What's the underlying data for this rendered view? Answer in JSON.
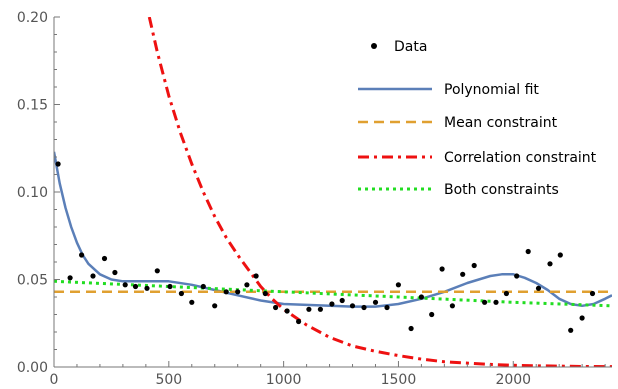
{
  "chart_data": {
    "type": "scatter",
    "title": "",
    "xlabel": "",
    "ylabel": "",
    "xlim": [
      0,
      2430
    ],
    "ylim": [
      0,
      0.2
    ],
    "x_ticks": [
      {
        "value": 0,
        "label": "0"
      },
      {
        "value": 500,
        "label": "500"
      },
      {
        "value": 1000,
        "label": "1000"
      },
      {
        "value": 1500,
        "label": "1500"
      },
      {
        "value": 2000,
        "label": "2000"
      }
    ],
    "y_ticks": [
      {
        "value": 0,
        "label": "0.00"
      },
      {
        "value": 0.05,
        "label": "0.05"
      },
      {
        "value": 0.1,
        "label": "0.10"
      },
      {
        "value": 0.15,
        "label": "0.15"
      },
      {
        "value": 0.2,
        "label": "0.20"
      }
    ],
    "grid": false,
    "legend_position": "top-right",
    "series": [
      {
        "name": "Data",
        "style": "points",
        "color": "#000000",
        "points": [
          [
            18,
            0.116
          ],
          [
            70,
            0.051
          ],
          [
            120,
            0.064
          ],
          [
            170,
            0.052
          ],
          [
            220,
            0.062
          ],
          [
            265,
            0.054
          ],
          [
            310,
            0.047
          ],
          [
            355,
            0.046
          ],
          [
            405,
            0.045
          ],
          [
            450,
            0.055
          ],
          [
            505,
            0.046
          ],
          [
            555,
            0.042
          ],
          [
            600,
            0.037
          ],
          [
            650,
            0.046
          ],
          [
            700,
            0.035
          ],
          [
            750,
            0.043
          ],
          [
            800,
            0.043
          ],
          [
            840,
            0.047
          ],
          [
            880,
            0.052
          ],
          [
            920,
            0.042
          ],
          [
            965,
            0.034
          ],
          [
            1015,
            0.032
          ],
          [
            1065,
            0.026
          ],
          [
            1110,
            0.033
          ],
          [
            1160,
            0.033
          ],
          [
            1210,
            0.036
          ],
          [
            1255,
            0.038
          ],
          [
            1300,
            0.035
          ],
          [
            1350,
            0.034
          ],
          [
            1400,
            0.037
          ],
          [
            1450,
            0.034
          ],
          [
            1500,
            0.047
          ],
          [
            1555,
            0.022
          ],
          [
            1600,
            0.04
          ],
          [
            1645,
            0.03
          ],
          [
            1690,
            0.056
          ],
          [
            1735,
            0.035
          ],
          [
            1780,
            0.053
          ],
          [
            1830,
            0.058
          ],
          [
            1875,
            0.037
          ],
          [
            1925,
            0.037
          ],
          [
            1970,
            0.042
          ],
          [
            2015,
            0.052
          ],
          [
            2065,
            0.066
          ],
          [
            2110,
            0.045
          ],
          [
            2160,
            0.059
          ],
          [
            2205,
            0.064
          ],
          [
            2250,
            0.021
          ],
          [
            2300,
            0.028
          ],
          [
            2345,
            0.042
          ]
        ]
      },
      {
        "name": "Polynomial fit",
        "style": "solid",
        "color": "#5b7fb8",
        "points": [
          [
            0,
            0.123
          ],
          [
            25,
            0.105
          ],
          [
            50,
            0.091
          ],
          [
            75,
            0.08
          ],
          [
            100,
            0.071
          ],
          [
            125,
            0.064
          ],
          [
            150,
            0.059
          ],
          [
            200,
            0.053
          ],
          [
            250,
            0.05
          ],
          [
            300,
            0.049
          ],
          [
            400,
            0.049
          ],
          [
            500,
            0.049
          ],
          [
            600,
            0.047
          ],
          [
            700,
            0.044
          ],
          [
            800,
            0.041
          ],
          [
            900,
            0.038
          ],
          [
            1000,
            0.036
          ],
          [
            1100,
            0.0355
          ],
          [
            1200,
            0.035
          ],
          [
            1300,
            0.0345
          ],
          [
            1400,
            0.0345
          ],
          [
            1500,
            0.036
          ],
          [
            1600,
            0.039
          ],
          [
            1700,
            0.043
          ],
          [
            1800,
            0.048
          ],
          [
            1900,
            0.052
          ],
          [
            1950,
            0.053
          ],
          [
            2000,
            0.053
          ],
          [
            2050,
            0.051
          ],
          [
            2100,
            0.048
          ],
          [
            2150,
            0.044
          ],
          [
            2200,
            0.039
          ],
          [
            2250,
            0.036
          ],
          [
            2300,
            0.035
          ],
          [
            2350,
            0.036
          ],
          [
            2400,
            0.039
          ],
          [
            2430,
            0.041
          ]
        ]
      },
      {
        "name": "Mean constraint",
        "style": "dashed",
        "color": "#e0a030",
        "points": [
          [
            0,
            0.043
          ],
          [
            2430,
            0.043
          ]
        ]
      },
      {
        "name": "Correlation constraint",
        "style": "dashdot",
        "color": "#ee1111",
        "points": [
          [
            415,
            0.2
          ],
          [
            450,
            0.18
          ],
          [
            500,
            0.155
          ],
          [
            550,
            0.134
          ],
          [
            600,
            0.116
          ],
          [
            650,
            0.1
          ],
          [
            700,
            0.086
          ],
          [
            750,
            0.074
          ],
          [
            800,
            0.064
          ],
          [
            850,
            0.055
          ],
          [
            900,
            0.046
          ],
          [
            950,
            0.039
          ],
          [
            1000,
            0.033
          ],
          [
            1100,
            0.024
          ],
          [
            1200,
            0.017
          ],
          [
            1300,
            0.012
          ],
          [
            1400,
            0.009
          ],
          [
            1500,
            0.0065
          ],
          [
            1600,
            0.0045
          ],
          [
            1700,
            0.003
          ],
          [
            1800,
            0.0022
          ],
          [
            1900,
            0.0015
          ],
          [
            2000,
            0.001
          ],
          [
            2100,
            0.0007
          ],
          [
            2200,
            0.0005
          ],
          [
            2300,
            0.0003
          ],
          [
            2430,
            0.0002
          ]
        ]
      },
      {
        "name": "Both constraints",
        "style": "dotted",
        "color": "#22dd22",
        "points": [
          [
            0,
            0.049
          ],
          [
            500,
            0.046
          ],
          [
            1000,
            0.043
          ],
          [
            1500,
            0.04
          ],
          [
            2000,
            0.037
          ],
          [
            2430,
            0.035
          ]
        ]
      }
    ]
  }
}
